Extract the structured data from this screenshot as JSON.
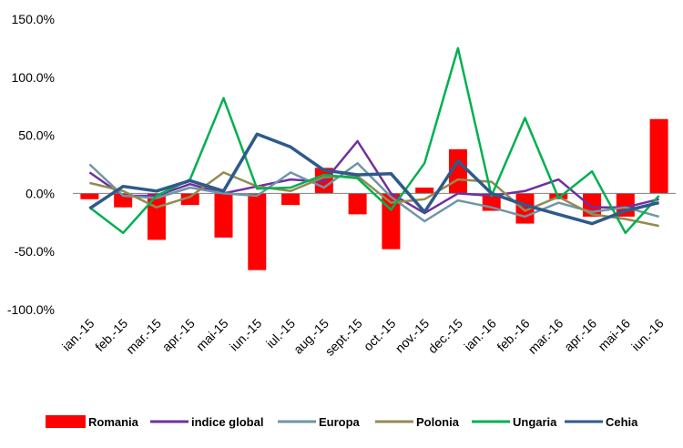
{
  "chart_data": {
    "type": "bar",
    "categories": [
      "ian.-15",
      "feb.-15",
      "mar.-15",
      "apr.-15",
      "mai-15",
      "iun.-15",
      "iul.-15",
      "aug.-15",
      "sept.-15",
      "oct.-15",
      "nov.-15",
      "dec.-15",
      "ian.-16",
      "feb.-16",
      "mar.-16",
      "apr.-16",
      "mai-16",
      "iun.-16"
    ],
    "ylim": [
      -100,
      150
    ],
    "yticks": [
      -100,
      -50,
      0,
      50,
      100,
      150
    ],
    "ytick_labels": [
      "-100.0%",
      "-50.0%",
      "0.0%",
      "50.0%",
      "100.0%",
      "150.0%"
    ],
    "grid": false,
    "legend_position": "bottom",
    "series": [
      {
        "name": "Romania",
        "kind": "bar",
        "color": "#ff0000",
        "values": [
          -5,
          -12,
          -40,
          -10,
          -38,
          -66,
          -10,
          22,
          -18,
          -48,
          5,
          38,
          -15,
          -26,
          -5,
          -20,
          -20,
          64
        ]
      },
      {
        "name": "indice global",
        "kind": "line",
        "color": "#7030a0",
        "values": [
          18,
          -2,
          -2,
          8,
          0,
          6,
          12,
          10,
          45,
          0,
          -17,
          0,
          -2,
          2,
          12,
          -12,
          -12,
          -5
        ]
      },
      {
        "name": "Europa",
        "kind": "line",
        "color": "#6e96a7",
        "values": [
          25,
          -2,
          -4,
          5,
          0,
          -2,
          18,
          5,
          26,
          -3,
          -24,
          -6,
          -12,
          -20,
          -8,
          -16,
          -12,
          -20
        ]
      },
      {
        "name": "Polonia",
        "kind": "line",
        "color": "#948a54",
        "values": [
          9,
          2,
          -12,
          -3,
          18,
          6,
          2,
          14,
          15,
          -8,
          -5,
          12,
          10,
          -15,
          -3,
          -18,
          -22,
          -28
        ]
      },
      {
        "name": "Ungaria",
        "kind": "line",
        "color": "#00b050",
        "values": [
          -12,
          -34,
          -2,
          12,
          82,
          4,
          5,
          16,
          13,
          -14,
          26,
          125,
          -2,
          65,
          -4,
          19,
          -34,
          -2
        ]
      },
      {
        "name": "Cehia",
        "kind": "line",
        "color": "#2e5a8a",
        "values": [
          -13,
          6,
          2,
          11,
          2,
          51,
          40,
          20,
          16,
          17,
          -16,
          28,
          0,
          -10,
          -18,
          -26,
          -15,
          -8
        ]
      }
    ]
  }
}
